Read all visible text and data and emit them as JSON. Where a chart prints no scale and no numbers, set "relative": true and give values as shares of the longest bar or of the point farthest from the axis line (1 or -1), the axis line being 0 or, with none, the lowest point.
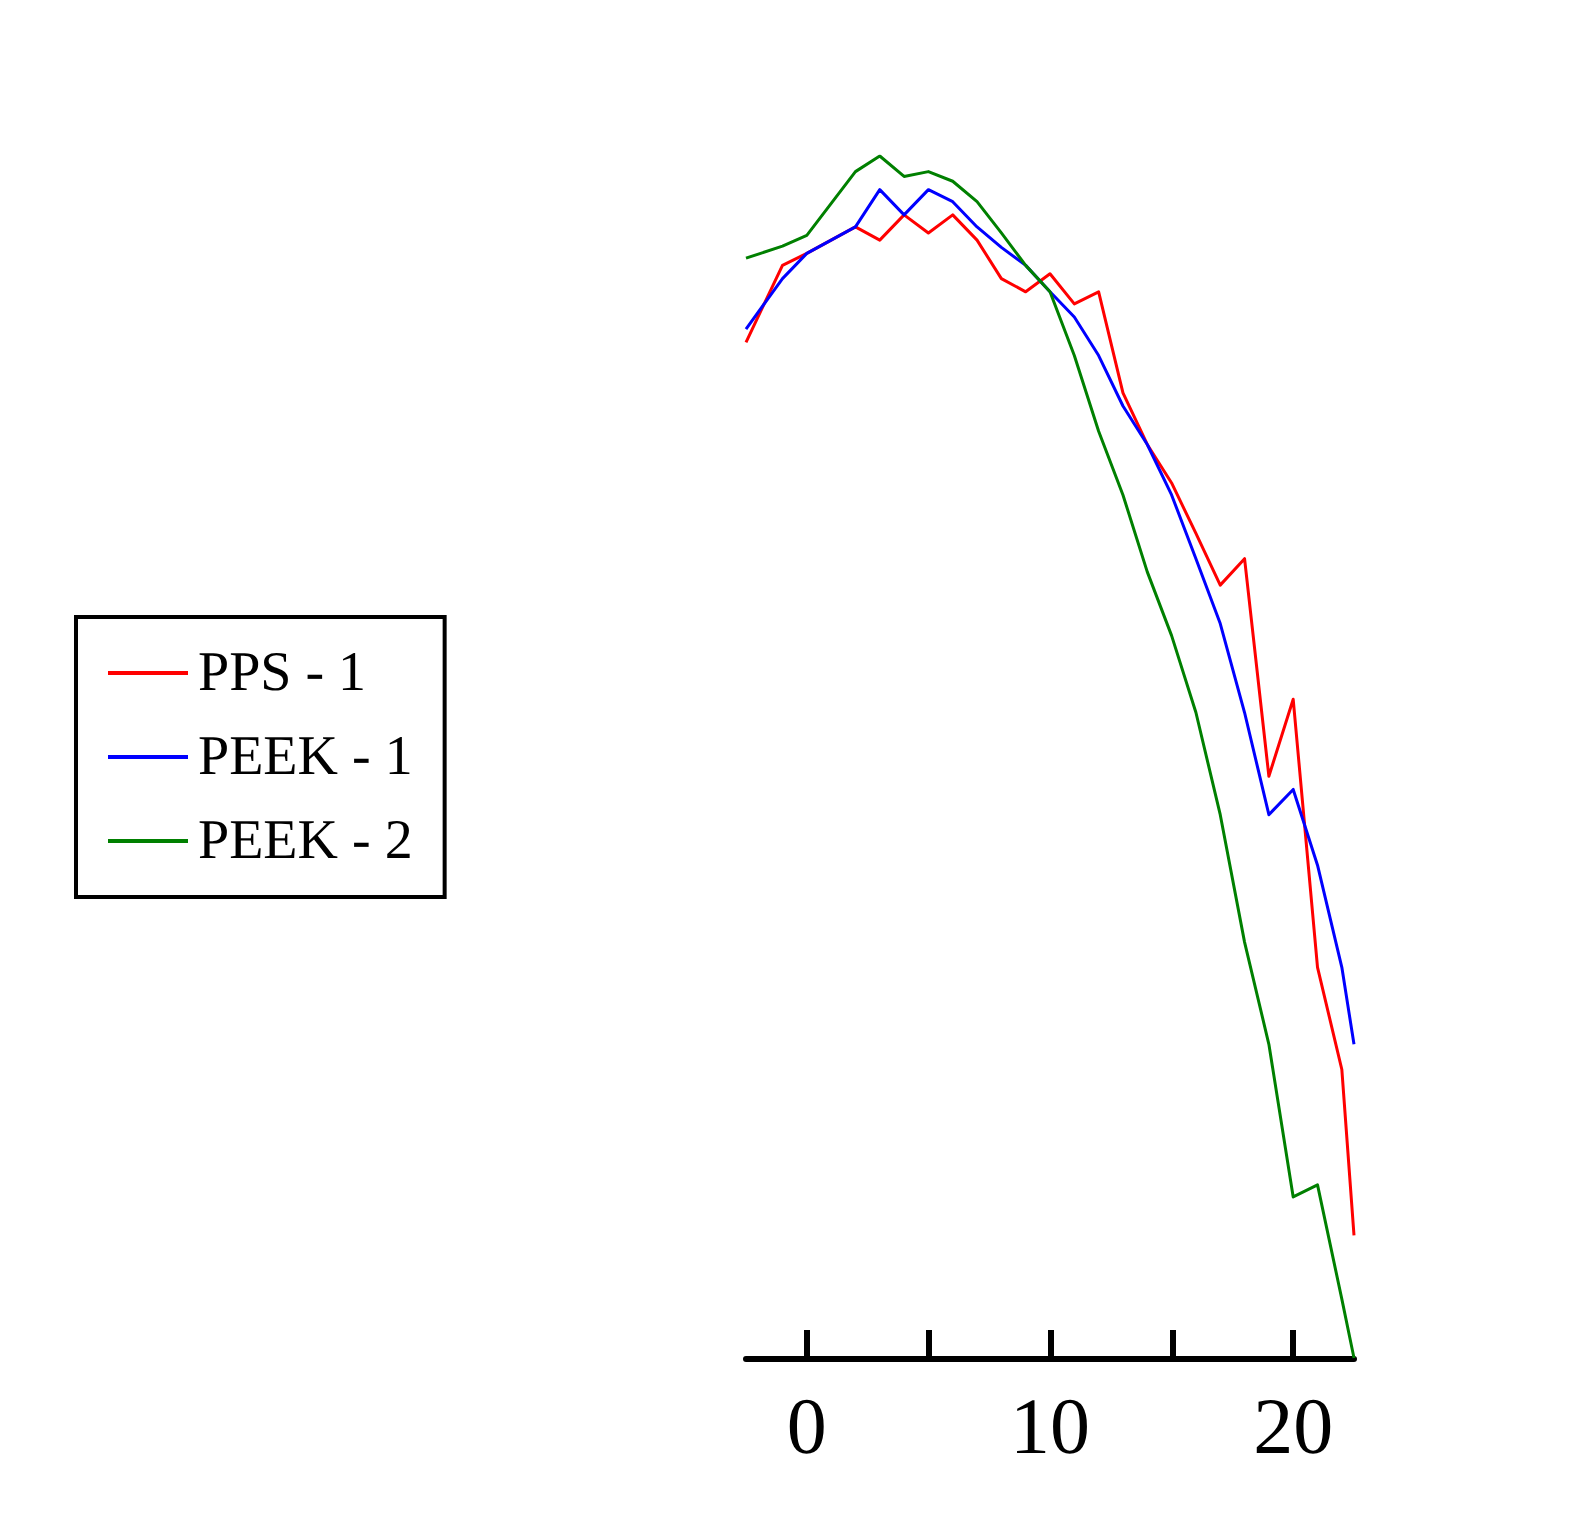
{
  "chart_data": {
    "type": "line",
    "relative": true,
    "x": [
      -2.5,
      -1,
      0,
      2,
      3,
      4,
      5,
      6,
      7,
      8,
      9,
      10,
      11,
      12,
      13,
      14,
      15,
      16,
      17,
      18,
      19,
      20,
      21,
      22,
      22.5
    ],
    "series": [
      {
        "name": "PPS - 1",
        "color": "#ff0000",
        "values": [
          0.845,
          0.909,
          0.919,
          0.941,
          0.93,
          0.951,
          0.936,
          0.951,
          0.93,
          0.898,
          0.887,
          0.902,
          0.877,
          0.887,
          0.803,
          0.76,
          0.728,
          0.686,
          0.643,
          0.665,
          0.484,
          0.548,
          0.325,
          0.24,
          0.102
        ]
      },
      {
        "name": "PEEK - 1",
        "color": "#0000ff",
        "values": [
          0.856,
          0.898,
          0.919,
          0.941,
          0.972,
          0.951,
          0.972,
          0.962,
          0.941,
          0.924,
          0.909,
          0.887,
          0.866,
          0.834,
          0.792,
          0.76,
          0.718,
          0.665,
          0.611,
          0.537,
          0.452,
          0.473,
          0.41,
          0.325,
          0.261
        ]
      },
      {
        "name": "PEEK - 2",
        "color": "#008000",
        "values": [
          0.915,
          0.925,
          0.934,
          0.987,
          1,
          0.983,
          0.987,
          0.979,
          0.962,
          0.936,
          0.909,
          0.887,
          0.834,
          0.771,
          0.718,
          0.654,
          0.601,
          0.537,
          0.452,
          0.346,
          0.261,
          0.134,
          0.144,
          0.049,
          0
        ]
      }
    ],
    "xlim": [
      -2.5,
      22.5
    ],
    "xticks": [
      0,
      {
        "value": 5,
        "label": null
      },
      10,
      {
        "value": 15,
        "label": null
      },
      20
    ],
    "legend": "left",
    "grid": false,
    "marker": "none",
    "line_style": "solid"
  }
}
